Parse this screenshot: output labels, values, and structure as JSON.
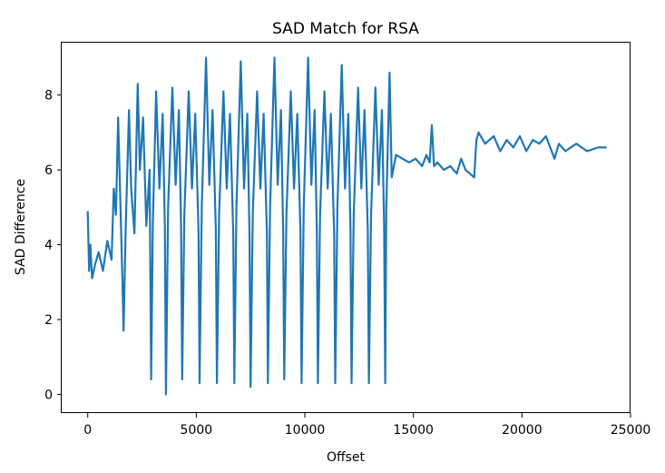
{
  "chart_data": {
    "type": "line",
    "title": "SAD Match for RSA",
    "xlabel": "Offset",
    "ylabel": "SAD Difference",
    "xlim": [
      -1200,
      25000
    ],
    "ylim": [
      -0.5,
      9.4
    ],
    "xticks": [
      0,
      5000,
      10000,
      15000,
      20000,
      25000
    ],
    "yticks": [
      0,
      2,
      4,
      6,
      8
    ],
    "grid": false,
    "legend": "none",
    "color": "#1f77b4",
    "series": [
      {
        "x": [
          0,
          60,
          120,
          200,
          350,
          500,
          700,
          900,
          1100,
          1200,
          1300,
          1400,
          1500,
          1600,
          1650,
          1750,
          1900,
          2000,
          2150,
          2300,
          2400,
          2550,
          2700,
          2850,
          2920,
          3000,
          3150,
          3300,
          3450,
          3550,
          3600,
          3700,
          3900,
          4050,
          4200,
          4300,
          4350,
          4450,
          4650,
          4800,
          4950,
          5100,
          5150,
          5250,
          5450,
          5600,
          5750,
          5900,
          5950,
          6050,
          6250,
          6400,
          6550,
          6700,
          6750,
          6850,
          7050,
          7200,
          7350,
          7450,
          7500,
          7600,
          7800,
          7950,
          8100,
          8250,
          8300,
          8400,
          8600,
          8750,
          8900,
          9000,
          9050,
          9150,
          9350,
          9500,
          9650,
          9800,
          9850,
          9950,
          10150,
          10300,
          10450,
          10550,
          10600,
          10700,
          10900,
          11050,
          11200,
          11350,
          11400,
          11500,
          11700,
          11850,
          12000,
          12100,
          12150,
          12250,
          12450,
          12600,
          12750,
          12900,
          12950,
          13050,
          13250,
          13400,
          13550,
          13650,
          13700,
          13750,
          13900,
          14000,
          14200,
          14500,
          14800,
          15100,
          15400,
          15600,
          15750,
          15850,
          15950,
          16100,
          16400,
          16700,
          17000,
          17200,
          17400,
          17600,
          17800,
          17900,
          18000,
          18300,
          18700,
          19000,
          19300,
          19600,
          19900,
          20200,
          20500,
          20800,
          21100,
          21300,
          21500,
          21700,
          22000,
          22500,
          23000,
          23500,
          23900
        ],
        "values": [
          4.9,
          3.3,
          4.0,
          3.1,
          3.5,
          3.8,
          3.3,
          4.1,
          3.6,
          5.5,
          4.8,
          7.4,
          5.2,
          3.0,
          1.7,
          4.5,
          7.6,
          5.5,
          4.3,
          8.3,
          6.0,
          7.4,
          4.5,
          6.0,
          0.4,
          4.6,
          8.1,
          5.5,
          7.5,
          4.5,
          0.0,
          5.0,
          8.2,
          5.6,
          7.6,
          4.5,
          0.4,
          4.8,
          8.1,
          5.5,
          7.5,
          4.4,
          0.3,
          5.0,
          9.0,
          5.6,
          7.6,
          4.4,
          0.3,
          4.8,
          8.1,
          5.5,
          7.5,
          4.3,
          0.3,
          5.0,
          8.9,
          5.5,
          7.5,
          4.3,
          0.2,
          4.8,
          8.1,
          5.5,
          7.5,
          4.3,
          0.3,
          5.0,
          9.0,
          5.6,
          7.6,
          4.4,
          0.4,
          4.8,
          8.1,
          5.5,
          7.5,
          4.3,
          0.3,
          5.0,
          9.0,
          5.6,
          7.6,
          4.4,
          0.3,
          4.8,
          8.1,
          5.5,
          7.5,
          4.3,
          0.3,
          5.0,
          8.8,
          5.5,
          7.5,
          4.4,
          0.3,
          4.8,
          8.2,
          5.5,
          7.6,
          4.4,
          0.3,
          4.8,
          8.2,
          5.6,
          7.6,
          4.5,
          0.3,
          5.0,
          8.6,
          5.8,
          6.4,
          6.3,
          6.2,
          6.3,
          6.1,
          6.4,
          6.2,
          7.2,
          6.1,
          6.2,
          6.0,
          6.1,
          5.9,
          6.3,
          6.0,
          5.9,
          5.8,
          6.8,
          7.0,
          6.7,
          6.9,
          6.5,
          6.8,
          6.6,
          6.9,
          6.5,
          6.8,
          6.7,
          6.9,
          6.6,
          6.3,
          6.7,
          6.5,
          6.7,
          6.5,
          6.6,
          6.6
        ]
      }
    ]
  }
}
